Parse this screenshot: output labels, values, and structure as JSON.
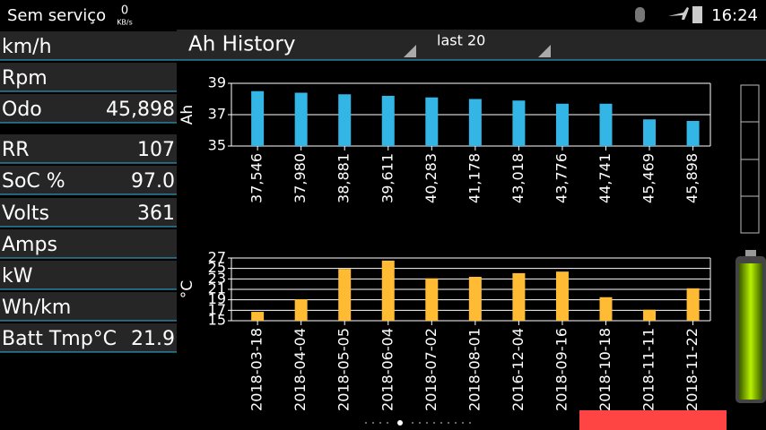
{
  "status_bar": {
    "carrier": "Sem serviço",
    "speed_value": "0",
    "speed_unit": "KB/s",
    "time": "16:24"
  },
  "header": {
    "title": "Ah History",
    "range": "last 20"
  },
  "left_panel": {
    "rows": [
      {
        "label": "km/h"
      },
      {
        "label": "Rpm"
      },
      {
        "label": "Odo",
        "value": "45,898"
      },
      {
        "label": "RR",
        "value": "107"
      },
      {
        "label": "SoC %",
        "value": "97.0"
      },
      {
        "label": "Volts",
        "value": "361"
      },
      {
        "label": "Amps"
      },
      {
        "label": "kW"
      },
      {
        "label": "Wh/km"
      },
      {
        "label": "Batt Tmp°C",
        "value": "21.9"
      }
    ]
  },
  "chart_data": [
    {
      "type": "bar",
      "y_label": "Ah",
      "color": "#33b5e5",
      "categories": [
        "37,546",
        "37,980",
        "38,881",
        "39,611",
        "40,283",
        "41,178",
        "43,018",
        "43,776",
        "44,741",
        "45,469",
        "45,898"
      ],
      "values": [
        38.5,
        38.4,
        38.3,
        38.2,
        38.1,
        38.0,
        37.9,
        37.7,
        37.7,
        36.7,
        36.6
      ],
      "ylim": [
        35,
        39
      ],
      "yticks": [
        35,
        37,
        39
      ],
      "grid": true
    },
    {
      "type": "bar",
      "y_label": "°C",
      "color": "#ffbb33",
      "categories": [
        "2018-03-18",
        "2018-04-04",
        "2018-05-05",
        "2018-06-04",
        "2018-07-02",
        "2018-08-01",
        "2016-12-04",
        "2018-09-16",
        "2018-10-18",
        "2018-11-11",
        "2018-11-22"
      ],
      "values": [
        16.7,
        19.1,
        24.9,
        26.5,
        23.1,
        23.4,
        24.1,
        24.4,
        19.5,
        17.1,
        21.2
      ],
      "ylim": [
        15,
        27
      ],
      "yticks": [
        15,
        17,
        19,
        21,
        23,
        25,
        27
      ],
      "grid": true
    }
  ]
}
